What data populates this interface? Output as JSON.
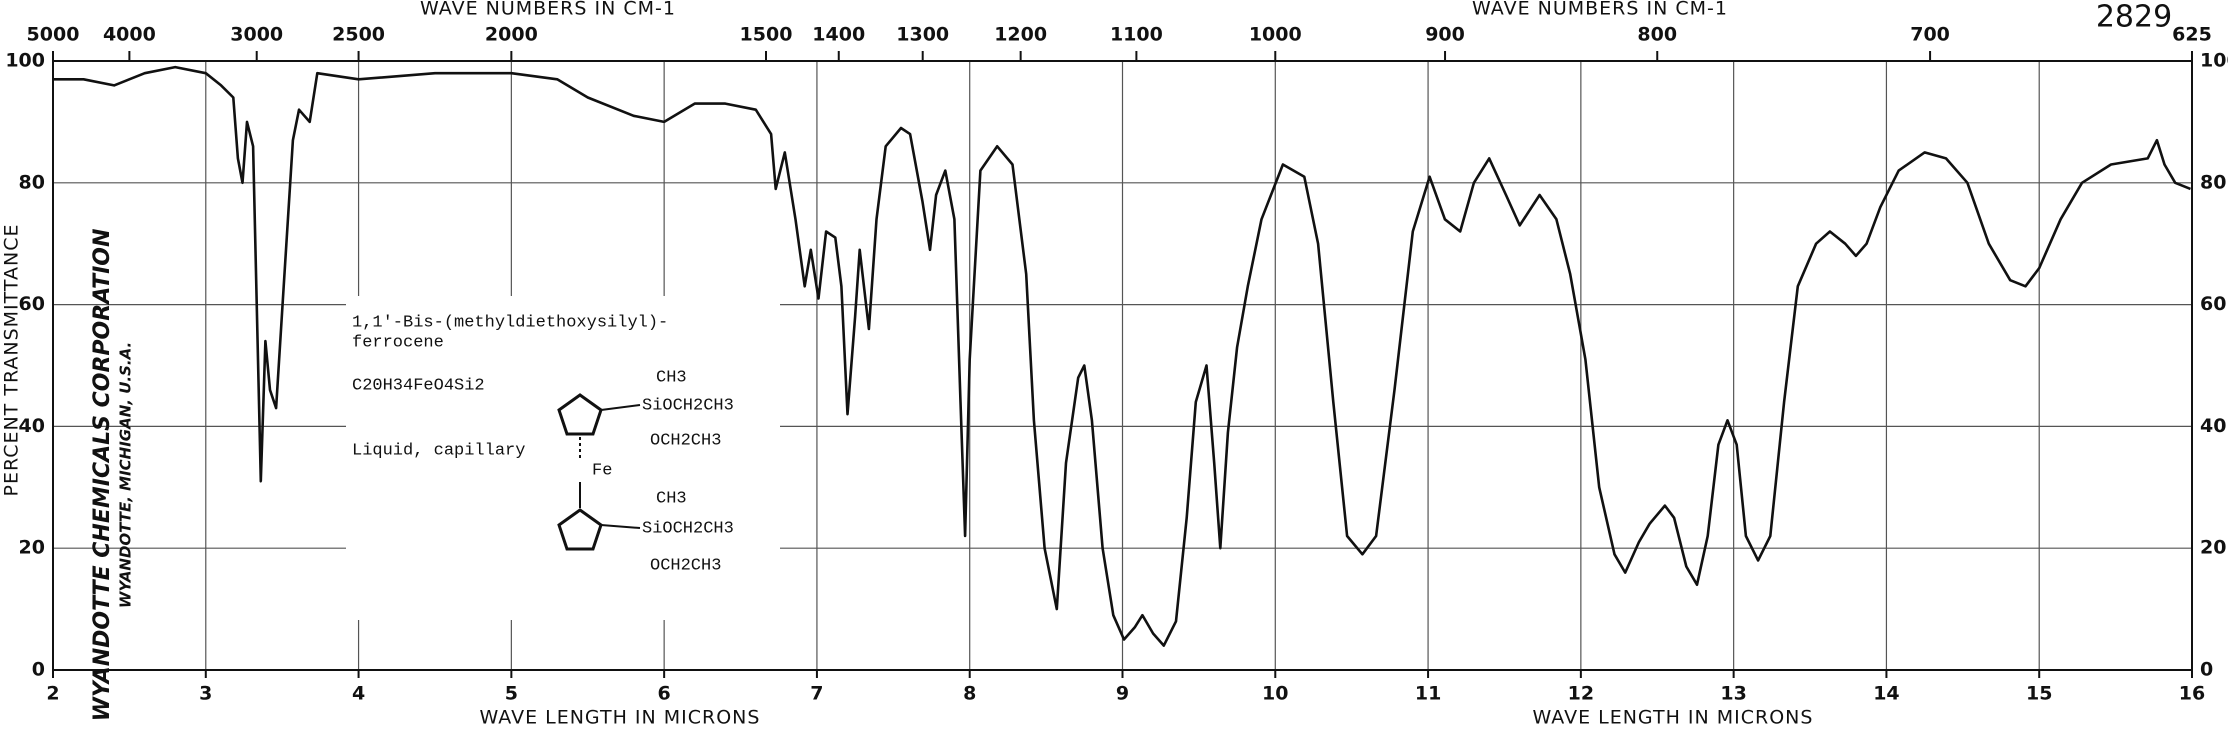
{
  "chart_data": {
    "type": "line",
    "id_number": "2829",
    "xlabel": "WAVE LENGTH IN MICRONS",
    "x2label": "WAVE NUMBERS IN CM-1",
    "ylabel": "PERCENT TRANSMITTANCE",
    "company": "WYANDOTTE CHEMICALS CORPORATION",
    "location": "WYANDOTTE, MICHIGAN, U.S.A.",
    "compound": {
      "name_lines": [
        "1,1'-Bis-(methyldiethoxysilyl)-",
        "ferrocene"
      ],
      "formula": "C20H34FeO4Si2",
      "state": "Liquid, capillary",
      "metal": "Fe",
      "upper_groups": [
        "CH3",
        "SiOCH2CH3",
        "OCH2CH3"
      ],
      "lower_groups": [
        "CH3",
        "SiOCH2CH3",
        "OCH2CH3"
      ]
    },
    "color": "#111111",
    "grid": true,
    "xlim": [
      2,
      16
    ],
    "ylim": [
      0,
      100
    ],
    "xticks": [
      2,
      3,
      4,
      5,
      6,
      7,
      8,
      9,
      10,
      11,
      12,
      13,
      14,
      15,
      16
    ],
    "yticks": [
      0,
      20,
      40,
      60,
      80,
      100
    ],
    "x2ticks": [
      5000,
      4000,
      3000,
      2500,
      2000,
      1500,
      1400,
      1300,
      1200,
      1100,
      1000,
      900,
      800,
      700,
      625
    ],
    "x": [
      2.0,
      2.2,
      2.4,
      2.6,
      2.8,
      3.0,
      3.1,
      3.18,
      3.21,
      3.24,
      3.27,
      3.31,
      3.36,
      3.39,
      3.42,
      3.46,
      3.51,
      3.57,
      3.61,
      3.68,
      3.73,
      4.0,
      4.5,
      5.0,
      5.3,
      5.5,
      5.8,
      6.0,
      6.2,
      6.4,
      6.6,
      6.7,
      6.73,
      6.79,
      6.86,
      6.92,
      6.96,
      7.01,
      7.06,
      7.12,
      7.16,
      7.2,
      7.25,
      7.28,
      7.34,
      7.39,
      7.45,
      7.55,
      7.61,
      7.69,
      7.74,
      7.78,
      7.84,
      7.9,
      7.94,
      7.97,
      8.0,
      8.07,
      8.18,
      8.28,
      8.37,
      8.42,
      8.49,
      8.57,
      8.63,
      8.71,
      8.75,
      8.8,
      8.87,
      8.94,
      9.01,
      9.08,
      9.13,
      9.2,
      9.27,
      9.35,
      9.42,
      9.48,
      9.55,
      9.6,
      9.64,
      9.69,
      9.75,
      9.82,
      9.91,
      10.05,
      10.19,
      10.28,
      10.38,
      10.47,
      10.57,
      10.66,
      10.78,
      10.9,
      11.01,
      11.11,
      11.21,
      11.3,
      11.4,
      11.51,
      11.6,
      11.73,
      11.84,
      11.93,
      12.03,
      12.12,
      12.22,
      12.29,
      12.38,
      12.45,
      12.55,
      12.61,
      12.69,
      12.76,
      12.83,
      12.9,
      12.96,
      13.02,
      13.08,
      13.16,
      13.24,
      13.33,
      13.42,
      13.54,
      13.63,
      13.73,
      13.8,
      13.87,
      13.96,
      14.08,
      14.25,
      14.39,
      14.53,
      14.67,
      14.81,
      14.91,
      15.0,
      15.14,
      15.28,
      15.47,
      15.71,
      15.77,
      15.82,
      15.89,
      15.99
    ],
    "values": [
      97,
      97,
      96,
      98,
      99,
      98,
      96,
      94,
      84,
      80,
      90,
      86,
      31,
      54,
      46,
      43,
      63,
      87,
      92,
      90,
      98,
      97,
      98,
      98,
      97,
      94,
      91,
      90,
      93,
      93,
      92,
      88,
      79,
      85,
      74,
      63,
      69,
      61,
      72,
      71,
      63,
      42,
      58,
      69,
      56,
      74,
      86,
      89,
      88,
      77,
      69,
      78,
      82,
      74,
      44,
      22,
      51,
      82,
      86,
      83,
      65,
      41,
      20,
      10,
      34,
      48,
      50,
      41,
      20,
      9,
      5,
      7,
      9,
      6,
      4,
      8,
      25,
      44,
      50,
      34,
      20,
      39,
      53,
      63,
      74,
      83,
      81,
      70,
      44,
      22,
      19,
      22,
      46,
      72,
      81,
      74,
      72,
      80,
      84,
      78,
      73,
      78,
      74,
      65,
      51,
      30,
      19,
      16,
      21,
      24,
      27,
      25,
      17,
      14,
      22,
      37,
      41,
      37,
      22,
      18,
      22,
      44,
      63,
      70,
      72,
      70,
      68,
      70,
      76,
      82,
      85,
      84,
      80,
      70,
      64,
      63,
      66,
      74,
      80,
      83,
      84,
      87,
      83,
      80,
      79
    ]
  }
}
